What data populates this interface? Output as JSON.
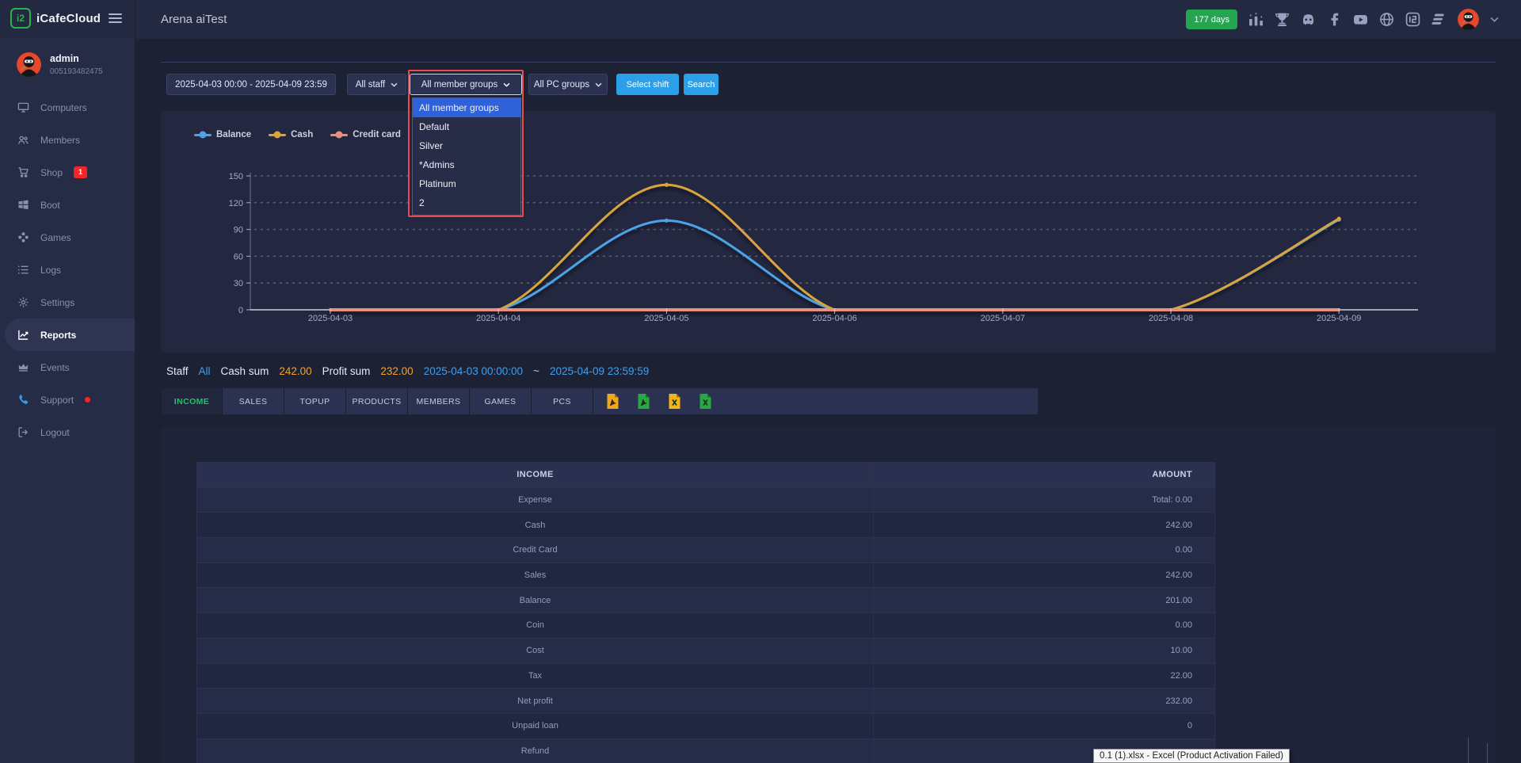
{
  "topbar": {
    "brand": "iCafeCloud",
    "brand_mark": "i2",
    "title": "Arena aiTest",
    "days_badge": "177 days",
    "icons": [
      "ranking-icon",
      "trophy-icon",
      "discord-icon",
      "facebook-icon",
      "youtube-icon",
      "globe-icon",
      "icafecloud-icon",
      "layers-icon",
      "avatar",
      "chevron-down-icon"
    ]
  },
  "sidebar": {
    "user": {
      "name": "admin",
      "id": "005193482475"
    },
    "items": [
      {
        "label": "Computers",
        "icon": "computers"
      },
      {
        "label": "Members",
        "icon": "members"
      },
      {
        "label": "Shop",
        "icon": "shop",
        "badge": "1"
      },
      {
        "label": "Boot",
        "icon": "boot"
      },
      {
        "label": "Games",
        "icon": "games"
      },
      {
        "label": "Logs",
        "icon": "logs"
      },
      {
        "label": "Settings",
        "icon": "settings"
      },
      {
        "label": "Reports",
        "icon": "reports",
        "active": true
      },
      {
        "label": "Events",
        "icon": "events"
      },
      {
        "label": "Support",
        "icon": "support",
        "dot": true
      },
      {
        "label": "Logout",
        "icon": "logout"
      }
    ]
  },
  "filters": {
    "date_range": "2025-04-03 00:00 - 2025-04-09 23:59",
    "staff": {
      "value": "All staff"
    },
    "member_groups": {
      "value": "All member groups",
      "options": [
        "All member groups",
        "Default",
        "Silver",
        "*Admins",
        "Platinum",
        "2"
      ],
      "selected_index": 0
    },
    "pc_groups": {
      "value": "All PC groups"
    },
    "select_shift_label": "Select shift",
    "search_label": "Search"
  },
  "chart_data": {
    "type": "line",
    "title": "",
    "xlabel": "",
    "ylabel": "",
    "categories": [
      "2025-04-03",
      "2025-04-04",
      "2025-04-05",
      "2025-04-06",
      "2025-04-07",
      "2025-04-08",
      "2025-04-09"
    ],
    "series": [
      {
        "name": "Balance",
        "color": "#4da3e8",
        "width": 3,
        "values": [
          0,
          0,
          100,
          0,
          0,
          0,
          101
        ]
      },
      {
        "name": "Cash",
        "color": "#d9a43b",
        "width": 3,
        "values": [
          0,
          0,
          140,
          0,
          0,
          0,
          102
        ]
      },
      {
        "name": "Credit card",
        "color": "#e88f7d",
        "width": 4,
        "values": [
          0,
          0,
          0,
          0,
          0,
          0,
          0
        ]
      }
    ],
    "ylim": [
      0,
      150
    ],
    "yticks": [
      0,
      30,
      60,
      90,
      120,
      150
    ],
    "grid": "horizontal-dashed",
    "legend_position": "top-left",
    "smooth": true
  },
  "summary": {
    "staff_label": "Staff",
    "staff_value": "All",
    "cash_sum_label": "Cash sum",
    "cash_sum_value": "242.00",
    "profit_sum_label": "Profit sum",
    "profit_sum_value": "232.00",
    "range_start": "2025-04-03 00:00:00",
    "tilde": "~",
    "range_end": "2025-04-09 23:59:59"
  },
  "tabs": [
    {
      "label": "INCOME",
      "active": true
    },
    {
      "label": "SALES"
    },
    {
      "label": "TOPUP"
    },
    {
      "label": "PRODUCTS"
    },
    {
      "label": "MEMBERS"
    },
    {
      "label": "GAMES"
    },
    {
      "label": "PCS"
    }
  ],
  "export_buttons": [
    {
      "name": "export-pdf-yellow-icon",
      "type": "pdf",
      "color": "#f2a71b"
    },
    {
      "name": "export-pdf-green-icon",
      "type": "pdf",
      "color": "#27a844"
    },
    {
      "name": "export-xlsx-yellow-icon",
      "type": "xlsx",
      "color": "#f2b31b"
    },
    {
      "name": "export-xlsx-green-icon",
      "type": "xlsx",
      "color": "#27a844"
    }
  ],
  "income_table": {
    "headers": [
      "INCOME",
      "AMOUNT"
    ],
    "rows": [
      {
        "label": "Expense",
        "amount": "Total: 0.00"
      },
      {
        "label": "Cash",
        "amount": "242.00"
      },
      {
        "label": "Credit Card",
        "amount": "0.00"
      },
      {
        "label": "Sales",
        "amount": "242.00"
      },
      {
        "label": "Balance",
        "amount": "201.00"
      },
      {
        "label": "Coin",
        "amount": "0.00"
      },
      {
        "label": "Cost",
        "amount": "10.00"
      },
      {
        "label": "Tax",
        "amount": "22.00"
      },
      {
        "label": "Net profit",
        "amount": "232.00"
      },
      {
        "label": "Unpaid loan",
        "amount": "0"
      },
      {
        "label": "Refund",
        "amount": ""
      }
    ]
  },
  "tooltip": {
    "text": "0.1 (1).xlsx - Excel (Product Activation Failed)"
  },
  "colors": {
    "accent_blue": "#2b9fe8",
    "link_blue": "#3f9ff0",
    "value_orange": "#f0a22e",
    "badge_green": "#23a551",
    "badge_red": "#f42525",
    "active_tab_green": "#1fc568",
    "annotation_red": "#e74c4c",
    "selected_option_blue": "#2f62d8"
  }
}
